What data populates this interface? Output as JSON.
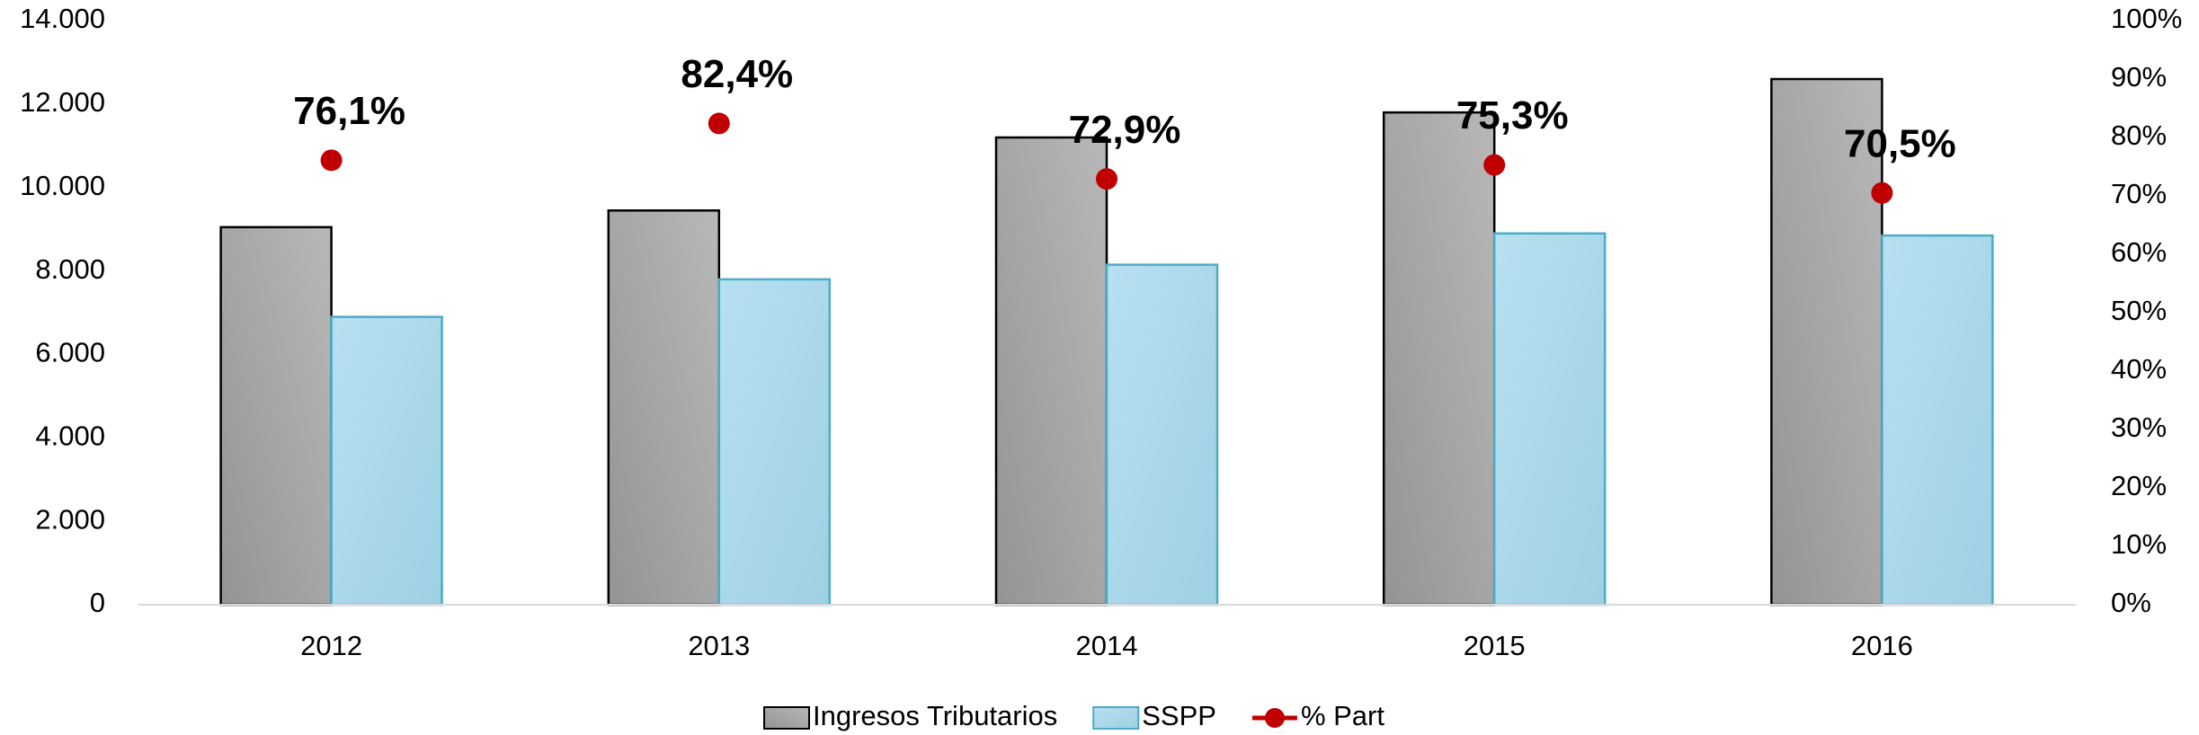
{
  "chart_data": {
    "type": "bar",
    "categories": [
      "2012",
      "2013",
      "2014",
      "2015",
      "2016"
    ],
    "series": [
      {
        "name": "Ingresos Tributarios",
        "color": "#a6a6a6",
        "values": [
          9050,
          9450,
          11200,
          11800,
          12600
        ]
      },
      {
        "name": "SSPP",
        "color": "#b0dcee",
        "values": [
          6900,
          7800,
          8150,
          8900,
          8850
        ]
      },
      {
        "name": "% Part",
        "color": "#c00000",
        "axis": "y2",
        "values": [
          76.1,
          82.4,
          72.9,
          75.3,
          70.5
        ],
        "value_labels": [
          "76,1%",
          "82,4%",
          "72,9%",
          "75,3%",
          "70,5%"
        ]
      }
    ],
    "ylim": [
      0,
      14000
    ],
    "yticks": [
      0,
      {
        "value": 2000,
        "label": "2.000"
      },
      {
        "value": 4000,
        "label": "4.000"
      },
      {
        "value": 6000,
        "label": "6.000"
      },
      {
        "value": 8000,
        "label": "8.000"
      },
      {
        "value": 10000,
        "label": "10.000"
      },
      {
        "value": 12000,
        "label": "12.000"
      },
      {
        "value": 14000,
        "label": "14.000"
      }
    ],
    "y2lim": [
      0,
      100
    ],
    "y2ticks": [
      {
        "value": 0,
        "label": "0%"
      },
      {
        "value": 10,
        "label": "10%"
      },
      {
        "value": 20,
        "label": "20%"
      },
      {
        "value": 30,
        "label": "30%"
      },
      {
        "value": 40,
        "label": "40%"
      },
      {
        "value": 50,
        "label": "50%"
      },
      {
        "value": 60,
        "label": "60%"
      },
      {
        "value": 70,
        "label": "70%"
      },
      {
        "value": 80,
        "label": "80%"
      },
      {
        "value": 90,
        "label": "90%"
      },
      {
        "value": 100,
        "label": "100%"
      }
    ],
    "legend": "bottom"
  }
}
